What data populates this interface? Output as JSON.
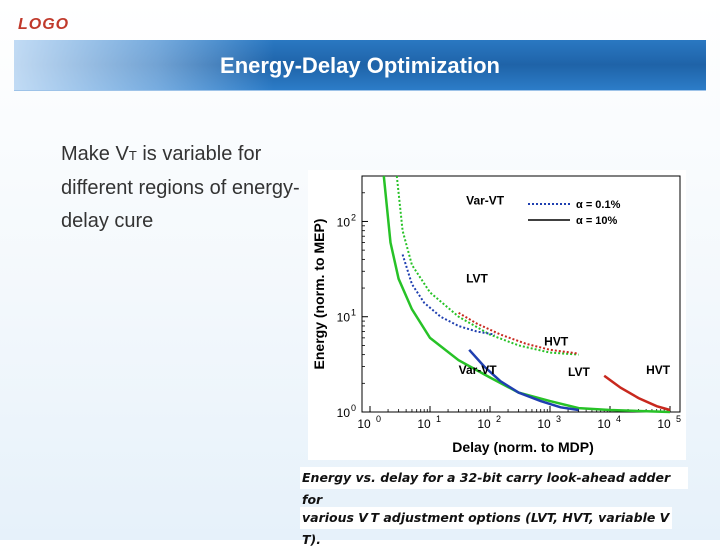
{
  "header": {
    "logo": "LOGO",
    "title": "Energy-Delay Optimization"
  },
  "bullet": {
    "part1": "Make V",
    "subscript": "T",
    "part2": " is variable for different regions of energy-delay cure"
  },
  "caption": {
    "line1": "Energy vs. delay for a 32-bit carry look-ahead adder for",
    "line2": "various V T adjustment options (LVT, HVT, variable V T)."
  },
  "colors": {
    "green": "#27c227",
    "blue": "#1f3fb0",
    "red": "#c8281e",
    "title_bg": "#1f63a8"
  },
  "chart_data": {
    "type": "line",
    "title": "",
    "xlabel": "Delay (norm. to MDP)",
    "ylabel": "Energy (norm. to MEP)",
    "xscale": "log",
    "yscale": "log",
    "xlim": [
      1,
      100000
    ],
    "ylim": [
      1,
      300
    ],
    "xticks": [
      "10^0",
      "10^1",
      "10^2",
      "10^3",
      "10^4",
      "10^5"
    ],
    "yticks": [
      "10^0",
      "10^1",
      "10^2"
    ],
    "legend": [
      {
        "label": "α = 0.1%",
        "style": "dotted"
      },
      {
        "label": "α = 10%",
        "style": "solid"
      }
    ],
    "annotations": [
      {
        "text": "Var-VT",
        "x": 40,
        "y": 150
      },
      {
        "text": "LVT",
        "x": 40,
        "y": 23
      },
      {
        "text": "HVT",
        "x": 800,
        "y": 5
      },
      {
        "text": "Var-VT",
        "x": 30,
        "y": 2.5
      },
      {
        "text": "LVT",
        "x": 2000,
        "y": 2.4
      },
      {
        "text": "HVT",
        "x": 40000,
        "y": 2.5
      }
    ],
    "series": [
      {
        "name": "Var-VT α=10%",
        "color": "green",
        "style": "solid",
        "x": [
          1.7,
          2.2,
          3,
          5,
          10,
          30,
          100,
          300,
          1000,
          3000,
          10000,
          100000
        ],
        "y": [
          300,
          60,
          25,
          12,
          6,
          3.5,
          2.3,
          1.6,
          1.3,
          1.1,
          1.05,
          1.0
        ]
      },
      {
        "name": "Var-VT α=0.1%",
        "color": "green",
        "style": "dotted",
        "x": [
          2.8,
          3.5,
          5,
          10,
          30,
          100,
          300,
          1000,
          3000
        ],
        "y": [
          300,
          80,
          35,
          18,
          10,
          6.5,
          5,
          4.2,
          4.0
        ]
      },
      {
        "name": "LVT α=0.1%",
        "color": "blue",
        "style": "dotted",
        "x": [
          3.5,
          5,
          8,
          15,
          30,
          60,
          120
        ],
        "y": [
          45,
          22,
          14,
          10,
          8,
          7,
          6.5
        ]
      },
      {
        "name": "LVT α=10%",
        "color": "blue",
        "style": "solid",
        "x": [
          45,
          80,
          150,
          300,
          700,
          1500,
          3000
        ],
        "y": [
          4.5,
          3,
          2.1,
          1.6,
          1.3,
          1.12,
          1.05
        ]
      },
      {
        "name": "HVT α=0.1%",
        "color": "red",
        "style": "dotted",
        "x": [
          30,
          60,
          150,
          400,
          1000,
          3000
        ],
        "y": [
          11,
          8.5,
          6.5,
          5.2,
          4.5,
          4.1
        ]
      },
      {
        "name": "HVT α=10%",
        "color": "red",
        "style": "solid",
        "x": [
          8000,
          15000,
          30000,
          60000,
          100000
        ],
        "y": [
          2.4,
          1.8,
          1.4,
          1.15,
          1.05
        ]
      }
    ]
  }
}
